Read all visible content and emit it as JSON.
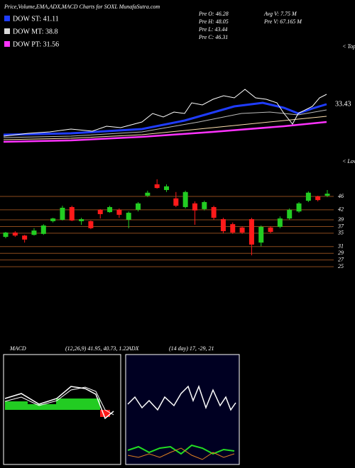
{
  "header": {
    "title": "Price,Volume,EMA,ADX,MACD Charts for SOXL MunafaSutra.com"
  },
  "legend": [
    {
      "label": "DOW ST: 41.11",
      "color": "#1f3cff"
    },
    {
      "label": "DOW MT: 38.8",
      "color": "#d9d9d9"
    },
    {
      "label": "DOW PT: 31.56",
      "color": "#ff33ff"
    }
  ],
  "stats": [
    "Pre  O: 46.28",
    "Pre  H: 48.05",
    "Pre  L: 43.44",
    "Pre  C: 46.31",
    "Avg V: 7.75 M",
    "Pre  V: 67.165 M"
  ],
  "ema_panel": {
    "price_label": "33.43",
    "tops": "< Tops"
  },
  "chart_data": {
    "type": "candlestick",
    "open": [
      33.9,
      35.2,
      34.3,
      34.5,
      34.8,
      38.6,
      39.0,
      42.8,
      38.6,
      38.6,
      42.0,
      41.3,
      42.0,
      39.0,
      42.0,
      46.2,
      49.6,
      47.9,
      45.4,
      42.8,
      43.9,
      42.2,
      42.8,
      39.2,
      37.7,
      36.7,
      39.2,
      32.2,
      36.7,
      36.9,
      39.4,
      41.5,
      44.7,
      46.0,
      46.2
    ],
    "high": [
      35.4,
      35.6,
      34.5,
      36.5,
      37.7,
      39.6,
      43.2,
      43.2,
      39.6,
      38.8,
      42.2,
      43.2,
      42.4,
      41.5,
      44.3,
      47.7,
      51.1,
      49.6,
      47.3,
      47.7,
      44.5,
      44.7,
      43.2,
      39.6,
      38.2,
      37.1,
      39.6,
      37.3,
      37.1,
      40.0,
      42.4,
      44.3,
      47.5,
      46.2,
      47.9
    ],
    "low": [
      33.5,
      33.9,
      32.2,
      34.3,
      34.5,
      38.2,
      38.8,
      38.6,
      37.5,
      36.2,
      39.4,
      41.1,
      39.6,
      36.5,
      41.5,
      45.8,
      48.3,
      47.3,
      42.8,
      42.4,
      37.5,
      41.8,
      39.0,
      35.0,
      34.8,
      34.8,
      28.4,
      31.1,
      35.0,
      36.5,
      39.0,
      41.1,
      44.3,
      44.5,
      45.8
    ],
    "close": [
      35.2,
      34.3,
      33.1,
      35.8,
      37.3,
      39.4,
      42.6,
      38.8,
      39.2,
      36.5,
      40.7,
      42.8,
      40.5,
      41.1,
      43.9,
      47.1,
      48.5,
      49.0,
      43.2,
      47.3,
      41.8,
      44.3,
      39.6,
      35.6,
      35.2,
      35.2,
      31.6,
      36.9,
      35.4,
      39.4,
      42.0,
      43.9,
      47.1,
      44.9,
      46.8
    ],
    "ylim": [
      3,
      57
    ],
    "yticks": [
      46,
      42,
      39,
      37,
      35,
      31,
      29,
      27,
      25
    ],
    "up_color": "#22cc22",
    "down_color": "#ff1a1a",
    "grid_color": "#8b4a1c",
    "lows_label": "< Lows"
  },
  "indicators": {
    "macd": {
      "name": "MACD",
      "params": "(12,26,9) 41.95, 40.73, 1.22"
    },
    "adx": {
      "name": "ADX",
      "params": "(14 day) 17, -29, 21"
    }
  }
}
